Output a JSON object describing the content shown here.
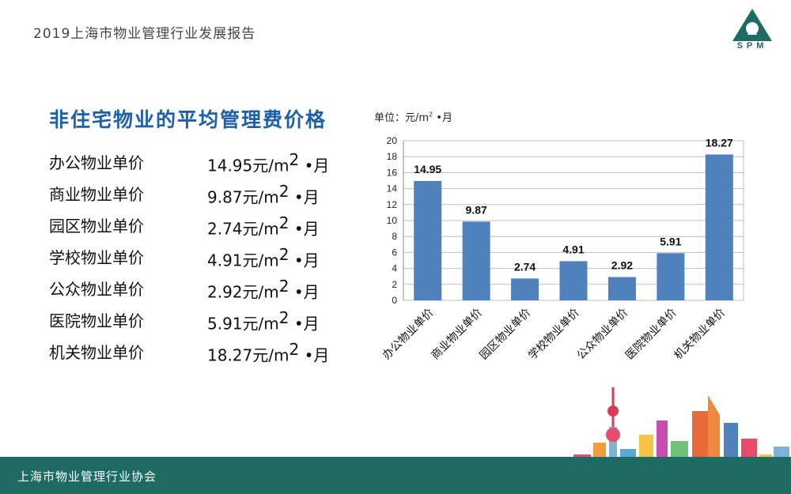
{
  "header": {
    "report_title": "2019上海市物业管理行业发展报告",
    "logo_text": "SPM"
  },
  "section": {
    "title": "非住宅物业的平均管理费价格"
  },
  "prices": [
    {
      "name": "办公物业单价",
      "value": "14.95元/m",
      "sup": "2",
      "suffix": " •月"
    },
    {
      "name": "商业物业单价",
      "value": "9.87元/m",
      "sup": "2",
      "suffix": " •月"
    },
    {
      "name": "园区物业单价",
      "value": "2.74元/m",
      "sup": "2",
      "suffix": " •月"
    },
    {
      "name": "学校物业单价",
      "value": "4.91元/m",
      "sup": "2",
      "suffix": " •月"
    },
    {
      "name": "公众物业单价",
      "value": "2.92元/m",
      "sup": "2",
      "suffix": " •月"
    },
    {
      "name": "医院物业单价",
      "value": "5.91元/m",
      "sup": "2",
      "suffix": " •月"
    },
    {
      "name": "机关物业单价",
      "value": "18.27元/m",
      "sup": "2",
      "suffix": " •月"
    }
  ],
  "chart_unit": {
    "prefix": "单位：元/m",
    "sup": "2",
    "suffix": " •月"
  },
  "chart_data": {
    "type": "bar",
    "categories": [
      "办公物业单价",
      "商业物业单价",
      "园区物业单价",
      "学校物业单价",
      "公众物业单价",
      "医院物业单价",
      "机关物业单价"
    ],
    "values": [
      14.95,
      9.87,
      2.74,
      4.91,
      2.92,
      5.91,
      18.27
    ],
    "value_labels": [
      "14.95",
      "9.87",
      "2.74",
      "4.91",
      "2.92",
      "5.91",
      "18.27"
    ],
    "ylim": [
      0,
      20
    ],
    "yticks": [
      0,
      2,
      4,
      6,
      8,
      10,
      12,
      14,
      16,
      18,
      20
    ],
    "grid": true,
    "bar_color": "#4f81bd"
  },
  "footer": {
    "text": "上海市物业管理行业协会"
  },
  "colors": {
    "accent": "#1d5fa8",
    "footer_bg": "#1e6b63"
  }
}
